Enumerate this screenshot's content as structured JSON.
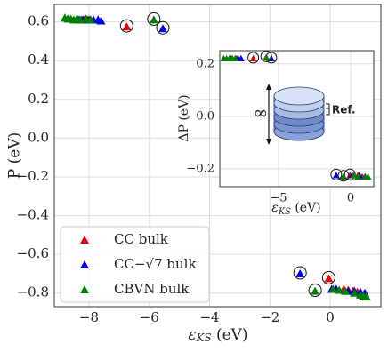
{
  "chart_data": [
    {
      "type": "scatter",
      "x_label": [
        "ε",
        "KS",
        " (eV)"
      ],
      "y_label": "P (eV)",
      "xlim": [
        -9.15,
        1.68
      ],
      "ylim": [
        -0.87,
        0.69
      ],
      "xticks": [
        {
          "value": -8,
          "label": "−8"
        },
        {
          "value": -6,
          "label": "−6"
        },
        {
          "value": -4,
          "label": "−4"
        },
        {
          "value": -2,
          "label": "−2"
        },
        0
      ],
      "yticks": [
        {
          "value": -0.8,
          "label": "−0.8"
        },
        {
          "value": -0.6,
          "label": "−0.6"
        },
        {
          "value": -0.4,
          "label": "−0.4"
        },
        {
          "value": -0.2,
          "label": "−0.2"
        },
        {
          "value": 0,
          "label": "0.0"
        },
        0.2,
        0.4,
        0.6
      ],
      "grid": true,
      "legend": "lower left",
      "series": [
        {
          "name": "CC bulk",
          "color": "#e8000b",
          "x": [
            -8.25,
            -8.15,
            -8.05,
            -7.95,
            -6.75,
            -0.05,
            0.45,
            0.6,
            0.75,
            0.9,
            1.0,
            1.1
          ],
          "values": [
            0.61,
            0.61,
            0.61,
            0.61,
            0.575,
            -0.725,
            -0.78,
            -0.785,
            -0.79,
            -0.795,
            -0.8,
            -0.81
          ],
          "circled": [
            4,
            5
          ]
        },
        {
          "name": "CC−√7 bulk",
          "color": "#0000e8",
          "x": [
            -8.35,
            -8.2,
            -8.0,
            -7.85,
            -7.7,
            -7.6,
            -5.55,
            -1.0,
            0.05,
            0.2,
            0.6,
            0.8,
            1.0,
            1.15
          ],
          "values": [
            0.61,
            0.61,
            0.61,
            0.61,
            0.61,
            0.605,
            0.565,
            -0.7,
            -0.78,
            -0.78,
            -0.79,
            -0.79,
            -0.795,
            -0.8
          ],
          "circled": [
            6,
            7
          ]
        },
        {
          "name": "CBVN bulk",
          "color": "#008000",
          "x": [
            -8.8,
            -8.7,
            -8.6,
            -8.5,
            -8.4,
            -8.3,
            -8.1,
            -7.95,
            -5.85,
            -0.5,
            0.1,
            0.3,
            0.5,
            0.8,
            1.0,
            1.1,
            1.2
          ],
          "values": [
            0.62,
            0.615,
            0.615,
            0.61,
            0.615,
            0.61,
            0.615,
            0.61,
            0.61,
            -0.79,
            -0.78,
            -0.785,
            -0.79,
            -0.8,
            -0.81,
            -0.815,
            -0.82
          ],
          "circled": [
            8,
            9
          ]
        }
      ]
    },
    {
      "type": "scatter",
      "x_label": [
        "ε",
        "KS",
        " (eV)"
      ],
      "y_label": "ΔP (eV)",
      "xlim": [
        -9.07,
        1.6
      ],
      "ylim": [
        -0.268,
        0.25
      ],
      "xticks": [
        {
          "value": -5,
          "label": "−5"
        },
        0
      ],
      "yticks": [
        {
          "value": -0.2,
          "label": "−0.2"
        },
        {
          "value": 0,
          "label": "0.0"
        },
        0.2
      ],
      "grid": true,
      "annotations": [
        "∞",
        "Ref."
      ],
      "series": [
        {
          "name": "CC bulk",
          "color": "#e8000b",
          "x": [
            -8.3,
            -8.0,
            -7.9,
            -6.75,
            -0.05,
            0.5,
            0.8,
            1.0
          ],
          "values": [
            0.22,
            0.22,
            0.22,
            0.22,
            -0.225,
            -0.225,
            -0.23,
            -0.23
          ],
          "circled": [
            3,
            4
          ]
        },
        {
          "name": "CC−√7 bulk",
          "color": "#0000e8",
          "x": [
            -8.2,
            -7.8,
            -7.6,
            -5.5,
            -1.0,
            0.1,
            0.6,
            1.0
          ],
          "values": [
            0.22,
            0.22,
            0.22,
            0.22,
            -0.225,
            -0.225,
            -0.225,
            -0.23
          ],
          "circled": [
            3,
            4
          ]
        },
        {
          "name": "CBVN bulk",
          "color": "#008000",
          "x": [
            -8.8,
            -8.6,
            -8.4,
            -8.2,
            -8.0,
            -5.85,
            -0.5,
            0.2,
            0.5,
            1.0,
            1.2
          ],
          "values": [
            0.22,
            0.22,
            0.22,
            0.22,
            0.22,
            0.225,
            -0.23,
            -0.225,
            -0.23,
            -0.23,
            -0.23
          ],
          "circled": [
            5,
            6
          ]
        }
      ]
    }
  ]
}
